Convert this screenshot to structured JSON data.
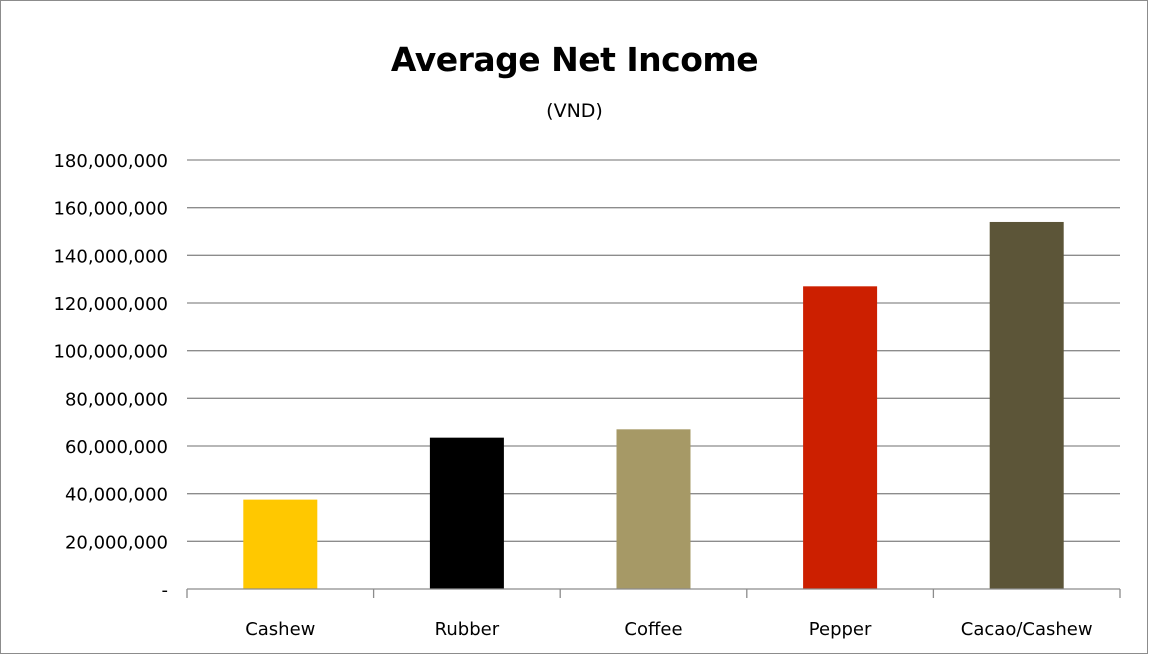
{
  "chart_data": {
    "type": "bar",
    "title": "Average Net Income",
    "subtitle": "(VND)",
    "xlabel": "",
    "ylabel": "",
    "categories": [
      "Cashew",
      "Rubber",
      "Coffee",
      "Pepper",
      "Cacao/Cashew"
    ],
    "values": [
      37500000,
      63500000,
      67000000,
      127000000,
      154000000
    ],
    "colors": [
      "#ffc800",
      "#000000",
      "#a69966",
      "#cc1f00",
      "#5c5538"
    ],
    "ylim": [
      0,
      180000000
    ],
    "yticks": [
      0,
      20000000,
      40000000,
      60000000,
      80000000,
      100000000,
      120000000,
      140000000,
      160000000,
      180000000
    ],
    "ytick_labels": [
      "-",
      "20,000,000",
      "40,000,000",
      "60,000,000",
      "80,000,000",
      "100,000,000",
      "120,000,000",
      "140,000,000",
      "160,000,000",
      "180,000,000"
    ],
    "grid": true,
    "legend": "none"
  }
}
